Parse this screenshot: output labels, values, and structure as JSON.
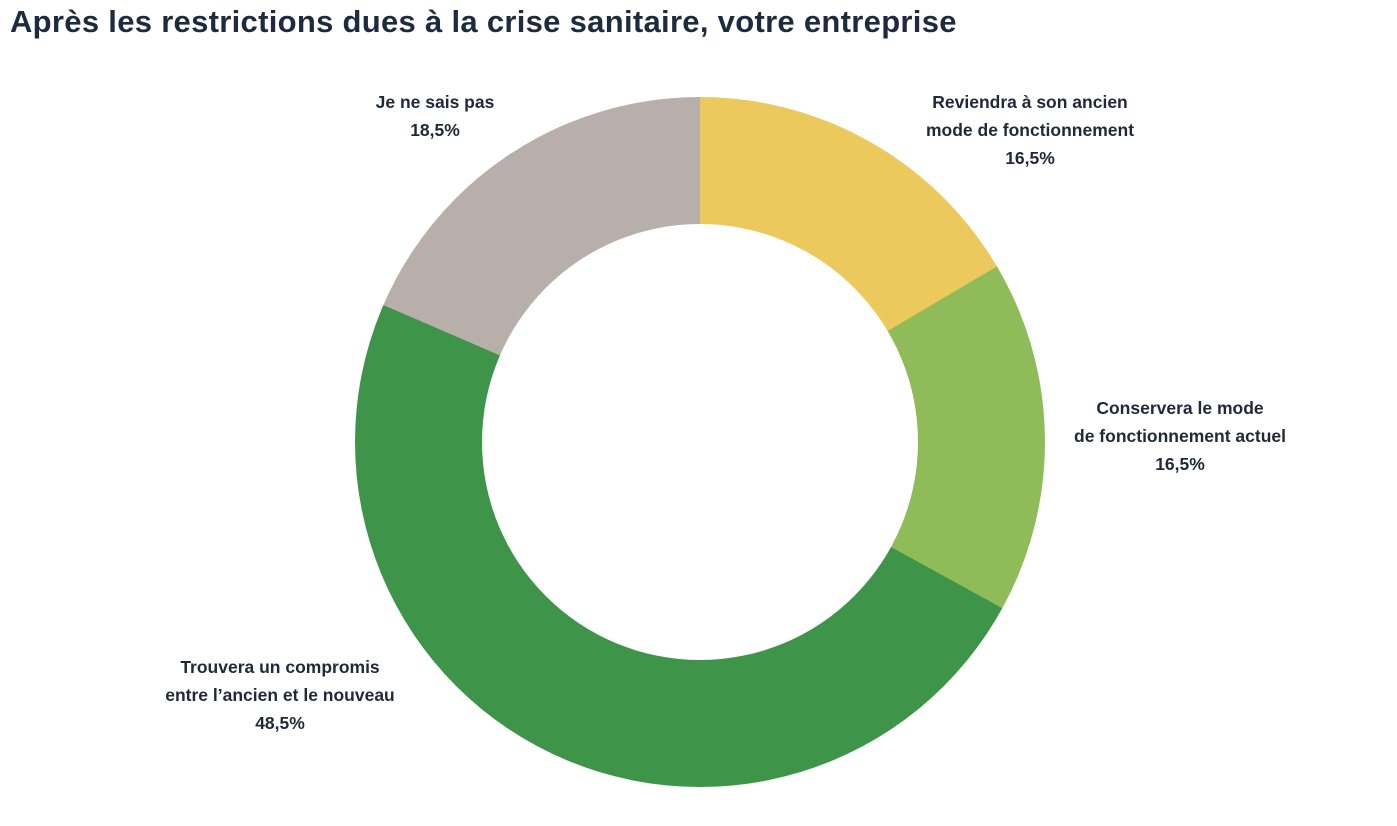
{
  "title": "Après les restrictions dues à la crise sanitaire, votre entreprise",
  "chart_data": {
    "type": "pie",
    "subtype": "donut",
    "title": "Après les restrictions dues à la crise sanitaire, votre entreprise",
    "start_angle_deg": 0,
    "direction": "clockwise",
    "inner_radius_ratio": 0.63,
    "legend_position": "labels-around-chart",
    "slices": [
      {
        "label": "Reviendra à son ancien mode de fonctionnement",
        "label_lines": [
          "Reviendra à son ancien",
          "mode de fonctionnement"
        ],
        "value": 16.5,
        "value_label": "16,5%",
        "color": "#ECC95D"
      },
      {
        "label": "Conservera le mode de fonctionnement actuel",
        "label_lines": [
          "Conservera le mode",
          "de fonctionnement actuel"
        ],
        "value": 16.5,
        "value_label": "16,5%",
        "color": "#8FBB58"
      },
      {
        "label": "Trouvera un compromis entre l’ancien et le nouveau",
        "label_lines": [
          "Trouvera un compromis",
          "entre l’ancien et le nouveau"
        ],
        "value": 48.5,
        "value_label": "48,5%",
        "color": "#3E9549"
      },
      {
        "label": "Je ne sais pas",
        "label_lines": [
          "Je ne sais pas"
        ],
        "value": 18.5,
        "value_label": "18,5%",
        "color": "#B9AFAA"
      }
    ]
  }
}
